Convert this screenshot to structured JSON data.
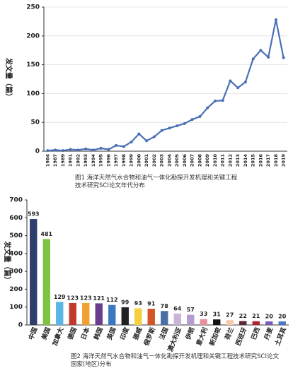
{
  "chart_data": [
    {
      "type": "line",
      "title": "图1  海洋天然气水合物和油气一体化勘探开发机理和关键工程技术研究SCI论文年代分布",
      "ylabel": "发文量（篇）",
      "categories": [
        "1984",
        "1987",
        "1989",
        "1991",
        "1992",
        "1993",
        "1994",
        "1995",
        "1996",
        "1997",
        "1998",
        "1999",
        "2000",
        "2001",
        "2002",
        "2003",
        "2004",
        "2005",
        "2006",
        "2007",
        "2008",
        "2009",
        "2010",
        "2011",
        "2012",
        "2013",
        "2014",
        "2015",
        "2016",
        "2017",
        "2018",
        "2019"
      ],
      "values": [
        1,
        2,
        1,
        3,
        2,
        4,
        2,
        5,
        3,
        10,
        8,
        16,
        30,
        18,
        25,
        36,
        40,
        44,
        48,
        55,
        60,
        75,
        87,
        88,
        122,
        110,
        120,
        160,
        175,
        163,
        228,
        162
      ],
      "color": "#4a6fb5",
      "ylim": [
        0,
        250
      ],
      "yticks": [
        0,
        50,
        100,
        150,
        200,
        250
      ],
      "grid": true
    },
    {
      "type": "bar",
      "title": "图2  海洋天然气水合物和油气一体化勘探开发机理和关键工程技术研究SCI论文国家(地区)分布",
      "ylabel": "发文量（篇）",
      "categories": [
        "中国",
        "美国",
        "加拿大",
        "德国",
        "日本",
        "韩国",
        "英国",
        "印度",
        "挪威",
        "俄罗斯",
        "法国",
        "澳大利亚",
        "伊朗",
        "意大利",
        "新加坡",
        "荷兰",
        "西班牙",
        "巴西",
        "丹麦",
        "土耳其"
      ],
      "values": [
        593,
        481,
        129,
        123,
        123,
        121,
        112,
        99,
        93,
        91,
        78,
        64,
        57,
        33,
        31,
        27,
        22,
        21,
        20,
        20
      ],
      "colors": [
        "#2c3e6b",
        "#7dc242",
        "#5ab4e5",
        "#c0392b",
        "#f0a030",
        "#6a3d8f",
        "#3a78c2",
        "#222222",
        "#f4d03f",
        "#d35427",
        "#4a6fa5",
        "#c9b3d9",
        "#b49cd0",
        "#e58fa0",
        "#111111",
        "#f6c9a8",
        "#5a2a3a",
        "#b22234",
        "#7a5ab5",
        "#4a77c2"
      ],
      "ylim": [
        0,
        700
      ],
      "yticks": [
        0,
        100,
        200,
        300,
        400,
        500,
        600,
        700
      ],
      "grid": false
    }
  ]
}
